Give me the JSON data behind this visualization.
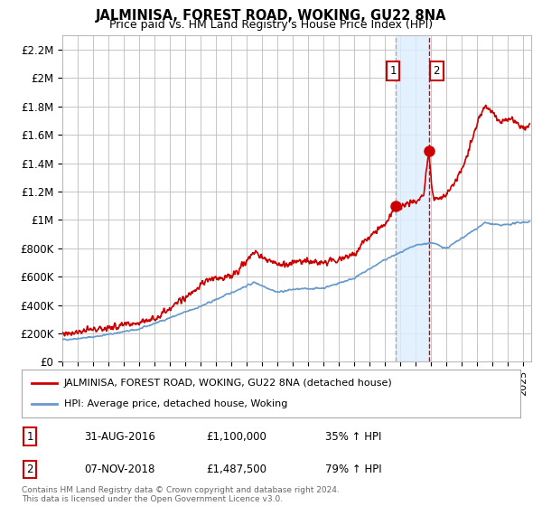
{
  "title": "JALMINISA, FOREST ROAD, WOKING, GU22 8NA",
  "subtitle": "Price paid vs. HM Land Registry's House Price Index (HPI)",
  "ylabel_ticks": [
    "£0",
    "£200K",
    "£400K",
    "£600K",
    "£800K",
    "£1M",
    "£1.2M",
    "£1.4M",
    "£1.6M",
    "£1.8M",
    "£2M",
    "£2.2M"
  ],
  "ytick_values": [
    0,
    200000,
    400000,
    600000,
    800000,
    1000000,
    1200000,
    1400000,
    1600000,
    1800000,
    2000000,
    2200000
  ],
  "ylim": [
    0,
    2300000
  ],
  "xlim_start": 1995,
  "xlim_end": 2025.5,
  "sale_dates": [
    2016.67,
    2018.85
  ],
  "sale_prices": [
    1100000,
    1487500
  ],
  "sale_labels": [
    "1",
    "2"
  ],
  "annotation1": {
    "label": "1",
    "date": "31-AUG-2016",
    "price": "£1,100,000",
    "pct": "35% ↑ HPI"
  },
  "annotation2": {
    "label": "2",
    "date": "07-NOV-2018",
    "price": "£1,487,500",
    "pct": "79% ↑ HPI"
  },
  "legend_line1": "JALMINISA, FOREST ROAD, WOKING, GU22 8NA (detached house)",
  "legend_line2": "HPI: Average price, detached house, Woking",
  "footnote": "Contains HM Land Registry data © Crown copyright and database right 2024.\nThis data is licensed under the Open Government Licence v3.0.",
  "red_color": "#cc0000",
  "blue_color": "#6699cc",
  "shade_color": "#ddeeff",
  "grid_color": "#bbbbbb",
  "bg_color": "#ffffff"
}
